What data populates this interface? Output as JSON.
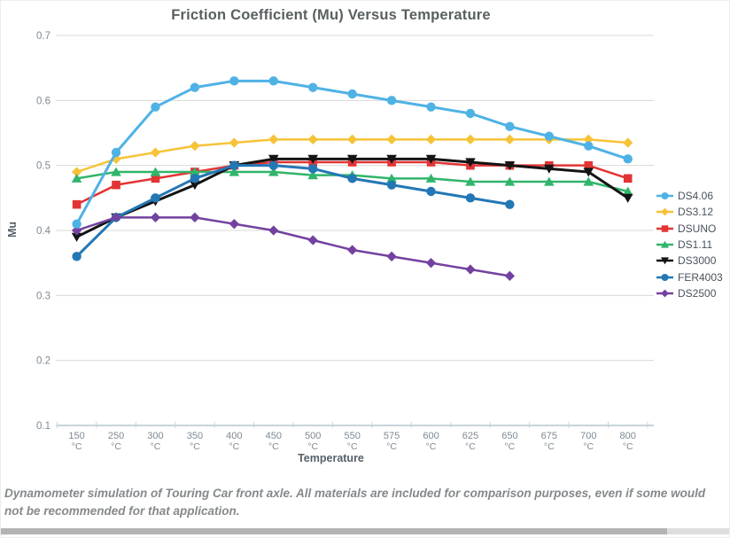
{
  "caption": "Dynamometer simulation of Touring Car front axle. All materials are included for comparison purposes, even if some would not be recommended for that application.",
  "colors": {
    "gridline": "#d9d9d9",
    "axis_line": "#c6d4dc",
    "tick_label": "#7e8a94",
    "axis_title": "#57606b",
    "title": "#595f61",
    "legend_text": "#47525c",
    "scrollbar_track": "#dedede",
    "scrollbar_thumb": "#b3b3b3"
  },
  "chart_data": {
    "type": "line",
    "title": "Friction Coefficient (Mu) Versus Temperature",
    "xlabel": "Temperature",
    "ylabel": "Mu",
    "ylim": [
      0.1,
      0.7
    ],
    "yticks": [
      0.7,
      0.6,
      0.5,
      0.4,
      0.3,
      0.2,
      0.1
    ],
    "grid": "horizontal",
    "legend_position": "right",
    "categories": [
      "150 °C",
      "250 °C",
      "300 °C",
      "350 °C",
      "400 °C",
      "450 °C",
      "500 °C",
      "550 °C",
      "575 °C",
      "600 °C",
      "625 °C",
      "650 °C",
      "675 °C",
      "700 °C",
      "800 °C"
    ],
    "series": [
      {
        "name": "DS4.06",
        "color": "#4fb2e5",
        "marker": "circle",
        "values": [
          0.41,
          0.52,
          0.59,
          0.62,
          0.63,
          0.63,
          0.62,
          0.61,
          0.6,
          0.59,
          0.58,
          0.56,
          0.545,
          0.53,
          0.51
        ]
      },
      {
        "name": "DS3.12",
        "color": "#f6c338",
        "marker": "diamond",
        "values": [
          0.49,
          0.51,
          0.52,
          0.53,
          0.535,
          0.54,
          0.54,
          0.54,
          0.54,
          0.54,
          0.54,
          0.54,
          0.54,
          0.54,
          0.535
        ]
      },
      {
        "name": "DSUNO",
        "color": "#e23434",
        "marker": "square",
        "values": [
          0.44,
          0.47,
          0.48,
          0.49,
          0.5,
          0.505,
          0.505,
          0.505,
          0.505,
          0.505,
          0.5,
          0.5,
          0.5,
          0.5,
          0.48
        ]
      },
      {
        "name": "DS1.11",
        "color": "#30b56a",
        "marker": "triangle-up",
        "values": [
          0.48,
          0.49,
          0.49,
          0.49,
          0.49,
          0.49,
          0.485,
          0.485,
          0.48,
          0.48,
          0.475,
          0.475,
          0.475,
          0.475,
          0.46
        ]
      },
      {
        "name": "DS3000",
        "color": "#141414",
        "marker": "triangle-down",
        "values": [
          0.39,
          0.42,
          0.445,
          0.47,
          0.5,
          0.51,
          0.51,
          0.51,
          0.51,
          0.51,
          0.505,
          0.5,
          0.495,
          0.49,
          0.45
        ]
      },
      {
        "name": "FER4003",
        "color": "#2477b5",
        "marker": "circle",
        "values": [
          0.36,
          0.42,
          0.45,
          0.48,
          0.5,
          0.5,
          0.495,
          0.48,
          0.47,
          0.46,
          0.45,
          0.44,
          null,
          null,
          null
        ]
      },
      {
        "name": "DS2500",
        "color": "#7342a0",
        "marker": "diamond",
        "values": [
          0.4,
          0.42,
          0.42,
          0.42,
          0.41,
          0.4,
          0.385,
          0.37,
          0.36,
          0.35,
          0.34,
          0.33,
          null,
          null,
          null
        ]
      }
    ]
  }
}
